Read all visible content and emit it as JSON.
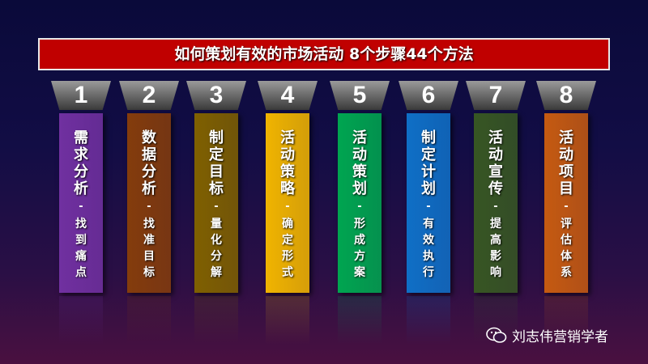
{
  "title": "如何策划有效的市场活动 8个步骤44个方法",
  "steps": [
    {
      "num": "1",
      "name": "需求分析",
      "dash": "-",
      "sub": "找到痛点",
      "color": "#7030a0"
    },
    {
      "num": "2",
      "name": "数据分析",
      "dash": "-",
      "sub": "找准目标",
      "color": "#843c0c"
    },
    {
      "num": "3",
      "name": "制定目标",
      "dash": "-",
      "sub": "量化分解",
      "color": "#7f6000"
    },
    {
      "num": "4",
      "name": "活动策略",
      "dash": "-",
      "sub": "确定形式",
      "color": "#f0b400"
    },
    {
      "num": "5",
      "name": "活动策划",
      "dash": "-",
      "sub": "形成方案",
      "color": "#00a550"
    },
    {
      "num": "6",
      "name": "制定计划",
      "dash": "-",
      "sub": "有效执行",
      "color": "#0f6fc6"
    },
    {
      "num": "7",
      "name": "活动宣传",
      "dash": "-",
      "sub": "提高影响",
      "color": "#375623"
    },
    {
      "num": "8",
      "name": "活动项目",
      "dash": "-",
      "sub": "评估体系",
      "color": "#c55a11"
    }
  ],
  "watermark": {
    "icon": "wechat-icon",
    "text": "刘志伟营销学者"
  }
}
